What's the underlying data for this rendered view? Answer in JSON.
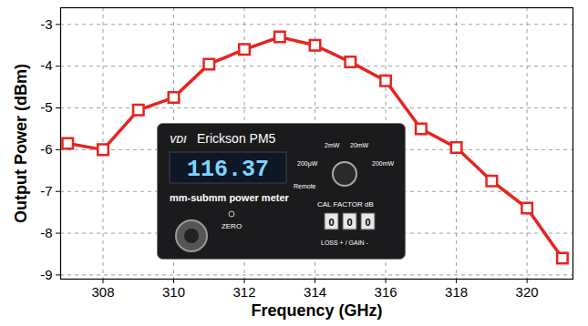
{
  "chart_data": {
    "type": "line",
    "x_label": "Frequency (GHz)",
    "y_label": "Output Power (dBm)",
    "x": [
      307,
      308,
      309,
      310,
      311,
      312,
      313,
      314,
      315,
      316,
      317,
      318,
      319,
      320,
      321
    ],
    "values": [
      -5.85,
      -6.0,
      -5.05,
      -4.75,
      -3.95,
      -3.6,
      -3.3,
      -3.5,
      -3.9,
      -4.35,
      -5.5,
      -5.95,
      -6.75,
      -7.4,
      -8.6
    ],
    "color": "#e8231f",
    "marker": "square",
    "xlim": [
      306.8,
      321.3
    ],
    "xticks": [
      308,
      310,
      312,
      314,
      316,
      318,
      320
    ],
    "ylim": [
      -9.1,
      -2.6
    ],
    "yticks": [
      -9,
      -8,
      -7,
      -6,
      -5,
      -4,
      -3
    ],
    "grid": true,
    "annotations": [
      "VDI",
      "Erickson PM5",
      "116.37",
      "mm-submm power meter",
      "ZERO",
      "200μW",
      "2mW",
      "20mW",
      "200mW",
      "Remote",
      "CAL FACTOR dB",
      "0",
      "0",
      "0",
      "LOSS + / GAIN -"
    ]
  }
}
